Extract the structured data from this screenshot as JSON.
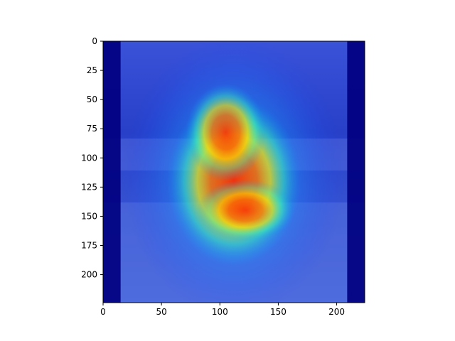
{
  "chart_data": {
    "type": "heatmap",
    "title": "",
    "xlabel": "",
    "ylabel": "",
    "xlim": [
      0,
      224
    ],
    "ylim": [
      224,
      0
    ],
    "grid": false,
    "x_ticks": [
      0,
      50,
      100,
      150,
      200
    ],
    "y_ticks": [
      0,
      25,
      50,
      75,
      100,
      125,
      150,
      175,
      200
    ],
    "image_shape": [
      224,
      224
    ],
    "dark_border_columns": [
      [
        0,
        15
      ],
      [
        209,
        224
      ]
    ],
    "hotspots": [
      {
        "x": 112,
        "y": 120,
        "intensity": 1.0,
        "sx": 30,
        "sy": 38
      },
      {
        "x": 105,
        "y": 78,
        "intensity": 0.9,
        "sx": 18,
        "sy": 22
      },
      {
        "x": 122,
        "y": 145,
        "intensity": 0.8,
        "sx": 22,
        "sy": 14
      }
    ],
    "colormap": "jet",
    "colors": {
      "low": "#000080",
      "mid_low": "#0060ff",
      "mid": "#00e0e0",
      "mid_high": "#ffff00",
      "high": "#ff3000"
    },
    "underlying_image": "baseball-batter-photo"
  }
}
